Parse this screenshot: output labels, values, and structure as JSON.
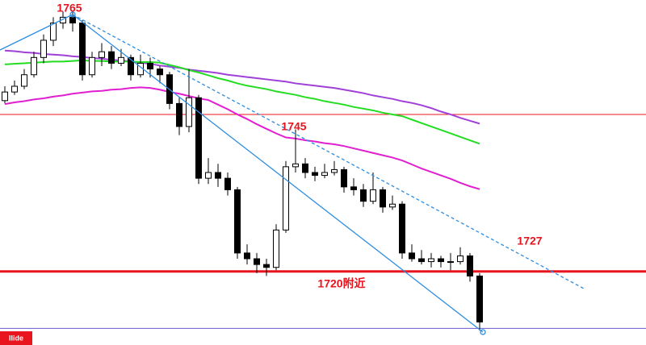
{
  "chart_data": {
    "type": "candlestick",
    "ylim": [
      1707,
      1767
    ],
    "up_color": "#ffffff",
    "down_color": "#000000",
    "candles": {
      "open": [
        1749.5,
        1751,
        1752,
        1754,
        1757,
        1760,
        1763,
        1764,
        1763,
        1754,
        1757,
        1758,
        1756,
        1757,
        1754,
        1756,
        1755,
        1754,
        1749,
        1745,
        1750,
        1736,
        1737,
        1736,
        1734,
        1723,
        1722,
        1721,
        1720.5,
        1727,
        1738,
        1738.5,
        1737,
        1736.5,
        1737,
        1737.5,
        1734.5,
        1734,
        1732,
        1734,
        1731,
        1731.5,
        1723,
        1722,
        1721.5,
        1722,
        1721.5,
        1721.5,
        1722.5,
        1719
      ],
      "high": [
        1752,
        1753,
        1755,
        1758,
        1761,
        1764,
        1765,
        1765,
        1763.5,
        1758,
        1759.5,
        1759,
        1758.5,
        1757.5,
        1757.5,
        1757,
        1755.5,
        1754.5,
        1750,
        1755,
        1750.5,
        1739.5,
        1738.5,
        1737,
        1734.5,
        1724.5,
        1723,
        1722,
        1728,
        1739,
        1744.5,
        1739.5,
        1738,
        1738.5,
        1739,
        1738,
        1736,
        1735,
        1737,
        1734.5,
        1733,
        1732,
        1724.5,
        1723.5,
        1723,
        1722.5,
        1723,
        1724,
        1723,
        1719.5
      ],
      "low": [
        1749,
        1750.5,
        1751.5,
        1753.5,
        1756,
        1759,
        1762,
        1761.5,
        1753,
        1753.5,
        1755.5,
        1755,
        1755.5,
        1753,
        1753.5,
        1753.5,
        1752.5,
        1748,
        1743.5,
        1744,
        1735,
        1735,
        1734.5,
        1733,
        1722,
        1721,
        1719.5,
        1719,
        1720,
        1726.5,
        1737,
        1736,
        1735.5,
        1736,
        1736.5,
        1733.5,
        1733,
        1731,
        1731.5,
        1730,
        1730.5,
        1722,
        1721.5,
        1721,
        1720.5,
        1720.5,
        1720,
        1721,
        1718,
        1709.5
      ],
      "close": [
        1751,
        1752,
        1754,
        1757,
        1760,
        1763,
        1764,
        1763,
        1754,
        1757,
        1758,
        1756,
        1757,
        1754,
        1756,
        1755,
        1754,
        1749,
        1745,
        1750,
        1736,
        1737,
        1736,
        1734,
        1723,
        1722,
        1721,
        1720.5,
        1727,
        1738,
        1738.5,
        1737,
        1736.5,
        1737,
        1737.5,
        1734.5,
        1734,
        1732,
        1734,
        1731,
        1731.5,
        1723,
        1722,
        1721.5,
        1722,
        1721.5,
        1721.5,
        1722.5,
        1719,
        1711
      ]
    },
    "series": [
      {
        "color": "#a040d8",
        "values": [
          1758.2,
          1758.1,
          1757.9,
          1757.8,
          1757.6,
          1757.5,
          1757.4,
          1757.2,
          1757.1,
          1756.9,
          1756.8,
          1756.6,
          1756.5,
          1756.3,
          1756.1,
          1755.9,
          1755.6,
          1755.4,
          1755.2,
          1754.9,
          1754.7,
          1754.5,
          1754.3,
          1754.0,
          1753.8,
          1753.6,
          1753.4,
          1753.2,
          1753.0,
          1752.8,
          1752.5,
          1752.3,
          1752.1,
          1751.9,
          1751.7,
          1751.4,
          1751.1,
          1750.8,
          1750.4,
          1750.1,
          1749.8,
          1749.4,
          1749.1,
          1748.7,
          1748.2,
          1747.6,
          1747.1,
          1746.5,
          1746.0,
          1745.5
        ]
      },
      {
        "color": "#22dd22",
        "values": [
          1755.8,
          1755.9,
          1756.0,
          1756.1,
          1756.2,
          1756.3,
          1756.3,
          1756.4,
          1756.5,
          1756.4,
          1756.4,
          1756.3,
          1756.3,
          1756.3,
          1756.2,
          1756.2,
          1756.1,
          1755.7,
          1755.3,
          1754.8,
          1754.4,
          1753.9,
          1753.4,
          1753.0,
          1752.5,
          1752.1,
          1751.8,
          1751.5,
          1751.1,
          1750.8,
          1750.5,
          1750.1,
          1749.8,
          1749.4,
          1749.1,
          1748.8,
          1748.4,
          1748.1,
          1747.8,
          1747.4,
          1747.1,
          1746.8,
          1746.2,
          1745.6,
          1745.0,
          1744.4,
          1743.8,
          1743.2,
          1742.6,
          1742.0
        ]
      },
      {
        "color": "#e020d0",
        "values": [
          1748.9,
          1749.2,
          1749.4,
          1749.7,
          1749.9,
          1750.2,
          1750.4,
          1750.7,
          1750.9,
          1751.1,
          1751.2,
          1751.4,
          1751.5,
          1751.7,
          1751.8,
          1751.7,
          1751.4,
          1751.0,
          1750.7,
          1750.3,
          1749.9,
          1749.6,
          1748.8,
          1748.0,
          1747.1,
          1746.3,
          1745.4,
          1744.6,
          1743.8,
          1743.1,
          1742.9,
          1742.6,
          1742.4,
          1742.1,
          1741.9,
          1741.6,
          1741.2,
          1740.8,
          1740.4,
          1740.0,
          1739.6,
          1739.1,
          1738.4,
          1737.7,
          1737.1,
          1736.5,
          1735.9,
          1735.2,
          1734.6,
          1734.1
        ]
      }
    ],
    "hlines": [
      {
        "value": 1747.1,
        "color": "#e8141e",
        "linewidth": 1
      },
      {
        "value": 1719.8,
        "color": "#e8141e",
        "linewidth": 3
      },
      {
        "value": 1709.9,
        "color": "#6a5acd",
        "linewidth": 1
      }
    ],
    "annotation_color": "#e8141e",
    "annotations": [
      {
        "text": "1765"
      },
      {
        "text": "1745"
      },
      {
        "text": "1727"
      },
      {
        "text": "1720附近"
      }
    ],
    "corner_label": "Ilide"
  }
}
